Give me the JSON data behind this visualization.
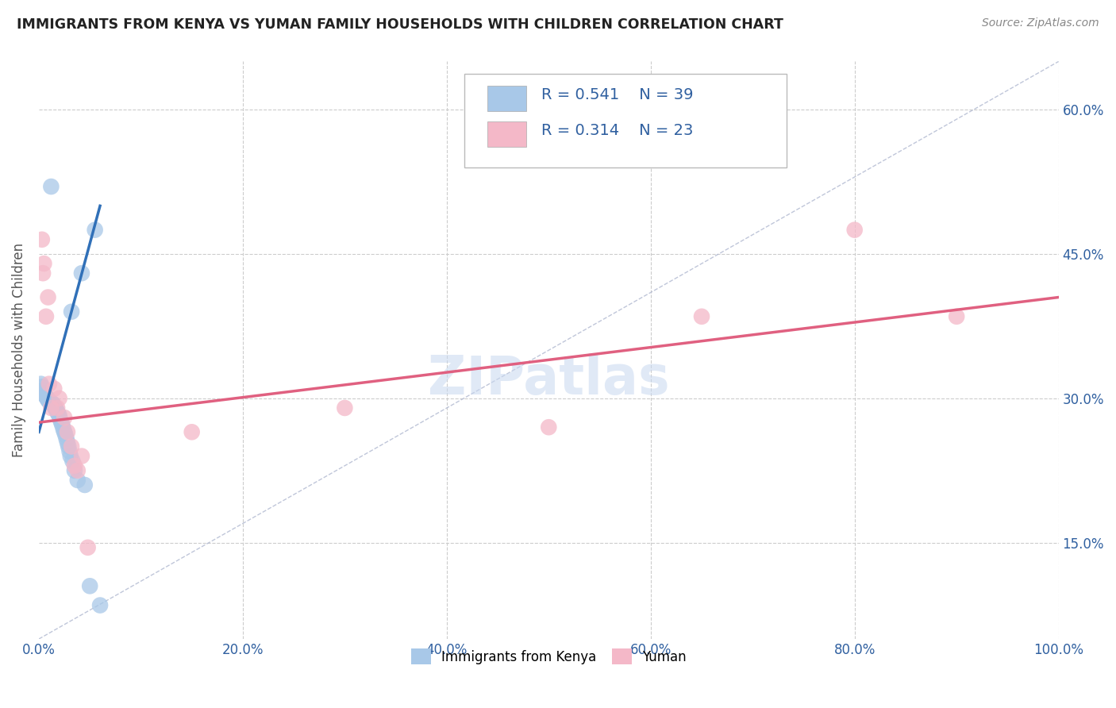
{
  "title": "IMMIGRANTS FROM KENYA VS YUMAN FAMILY HOUSEHOLDS WITH CHILDREN CORRELATION CHART",
  "source": "Source: ZipAtlas.com",
  "ylabel_label": "Family Households with Children",
  "legend_labels": [
    "Immigrants from Kenya",
    "Yuman"
  ],
  "R_kenya": 0.541,
  "N_kenya": 39,
  "R_yuman": 0.314,
  "N_yuman": 23,
  "color_kenya": "#a8c8e8",
  "color_yuman": "#f4b8c8",
  "color_kenya_line": "#3070b8",
  "color_yuman_line": "#e06080",
  "color_diag": "#b0b8d0",
  "watermark": "ZIPatlas",
  "kenya_x": [
    1.2,
    3.2,
    4.2,
    5.5,
    0.2,
    0.3,
    0.4,
    0.5,
    0.6,
    0.7,
    0.8,
    0.9,
    1.0,
    1.1,
    1.3,
    1.4,
    1.5,
    1.6,
    1.7,
    1.8,
    1.9,
    2.0,
    2.1,
    2.2,
    2.3,
    2.4,
    2.5,
    2.6,
    2.7,
    2.8,
    2.9,
    3.0,
    3.1,
    3.3,
    3.5,
    3.8,
    4.5,
    5.0,
    6.0
  ],
  "kenya_y": [
    52.0,
    39.0,
    43.0,
    47.5,
    31.5,
    31.2,
    30.8,
    30.5,
    30.3,
    30.2,
    30.0,
    29.8,
    29.7,
    29.6,
    29.5,
    29.4,
    29.2,
    29.0,
    28.8,
    28.6,
    28.4,
    28.2,
    27.8,
    27.5,
    27.2,
    26.8,
    26.5,
    26.2,
    25.8,
    25.4,
    25.0,
    24.5,
    24.0,
    23.5,
    22.5,
    21.5,
    21.0,
    10.5,
    8.5
  ],
  "yuman_x": [
    0.3,
    0.5,
    0.9,
    1.5,
    2.0,
    2.8,
    3.2,
    3.8,
    4.2,
    30.0,
    50.0,
    65.0,
    80.0,
    1.0,
    1.8,
    3.5,
    0.4,
    0.7,
    1.2,
    2.5,
    4.8,
    15.0,
    90.0
  ],
  "yuman_y": [
    46.5,
    44.0,
    40.5,
    31.0,
    30.0,
    26.5,
    25.0,
    22.5,
    24.0,
    29.0,
    27.0,
    38.5,
    47.5,
    31.5,
    29.0,
    23.0,
    43.0,
    38.5,
    29.0,
    28.0,
    14.5,
    26.5,
    38.5
  ],
  "xlim": [
    0.0,
    100.0
  ],
  "ylim": [
    5.0,
    65.0
  ],
  "x_ticks": [
    0,
    20,
    40,
    60,
    80,
    100
  ],
  "y_ticks": [
    15,
    30,
    45,
    60
  ],
  "kenya_line_x": [
    0.0,
    6.0
  ],
  "kenya_line_y": [
    26.5,
    50.0
  ],
  "yuman_line_x": [
    0.0,
    100.0
  ],
  "yuman_line_y": [
    27.5,
    40.5
  ]
}
